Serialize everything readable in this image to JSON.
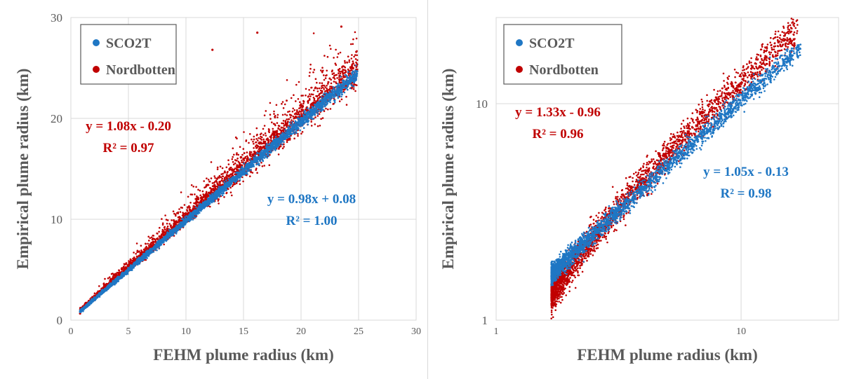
{
  "chart_data": [
    {
      "type": "scatter",
      "xlabel": "FEHM plume radius (km)",
      "ylabel": "Empirical plume radius (km)",
      "xlim": [
        0,
        30
      ],
      "ylim": [
        0,
        30
      ],
      "xticks": [
        0,
        5,
        10,
        15,
        20,
        25,
        30
      ],
      "yticks": [
        0,
        10,
        20,
        30
      ],
      "xscale": "linear",
      "yscale": "linear",
      "grid": true,
      "legend_position": "top-left",
      "series": [
        {
          "name": "SCO2T",
          "color": "#1f77c4",
          "trend": {
            "slope": 0.98,
            "intercept": 0.08
          },
          "sample_points": [
            [
              0.8,
              0.86
            ],
            [
              2,
              2.04
            ],
            [
              5,
              4.98
            ],
            [
              10,
              9.88
            ],
            [
              15,
              14.78
            ],
            [
              20,
              19.68
            ],
            [
              24.8,
              24.4
            ]
          ]
        },
        {
          "name": "Nordbotten",
          "color": "#c00000",
          "trend": {
            "slope": 1.08,
            "intercept": -0.2
          },
          "sample_points": [
            [
              0.8,
              0.66
            ],
            [
              2,
              1.96
            ],
            [
              5,
              5.2
            ],
            [
              10,
              10.6
            ],
            [
              15,
              16.0
            ],
            [
              20,
              21.4
            ],
            [
              24.8,
              26.6
            ],
            [
              23.5,
              29.1
            ],
            [
              16.2,
              28.5
            ],
            [
              12.3,
              26.8
            ]
          ]
        }
      ],
      "annotations": [
        {
          "line1": "y = 1.08x - 0.20",
          "line2": "R² = 0.97",
          "color": "#c00000"
        },
        {
          "line1": "y = 0.98x + 0.08",
          "line2": "R² = 1.00",
          "color": "#1f77c4"
        }
      ]
    },
    {
      "type": "scatter",
      "xlabel": "FEHM plume radius (km)",
      "ylabel": "Empirical plume radius (km)",
      "xlim": [
        1,
        25
      ],
      "ylim": [
        1,
        25
      ],
      "xticks": [
        1,
        10
      ],
      "yticks": [
        1,
        10
      ],
      "xscale": "log",
      "yscale": "log",
      "grid": true,
      "legend_position": "top-left",
      "series": [
        {
          "name": "SCO2T",
          "color": "#1f77c4",
          "trend": {
            "slope": 1.05,
            "intercept": -0.13
          },
          "sample_points": [
            [
              1.7,
              1.6
            ],
            [
              2,
              1.95
            ],
            [
              3,
              3.0
            ],
            [
              5,
              5.1
            ],
            [
              8,
              8.3
            ],
            [
              12,
              12.5
            ],
            [
              17,
              16.5
            ]
          ]
        },
        {
          "name": "Nordbotten",
          "color": "#c00000",
          "trend": {
            "slope": 1.33,
            "intercept": -0.96
          },
          "sample_points": [
            [
              1.7,
              1.3
            ],
            [
              2,
              1.7
            ],
            [
              3,
              2.9
            ],
            [
              5,
              5.4
            ],
            [
              8,
              9.3
            ],
            [
              12,
              15.5
            ],
            [
              16.5,
              19
            ]
          ]
        }
      ],
      "annotations": [
        {
          "line1": "y = 1.33x - 0.96",
          "line2": "R² = 0.96",
          "color": "#c00000"
        },
        {
          "line1": "y = 1.05x - 0.13",
          "line2": "R² = 0.98",
          "color": "#1f77c4"
        }
      ]
    }
  ]
}
